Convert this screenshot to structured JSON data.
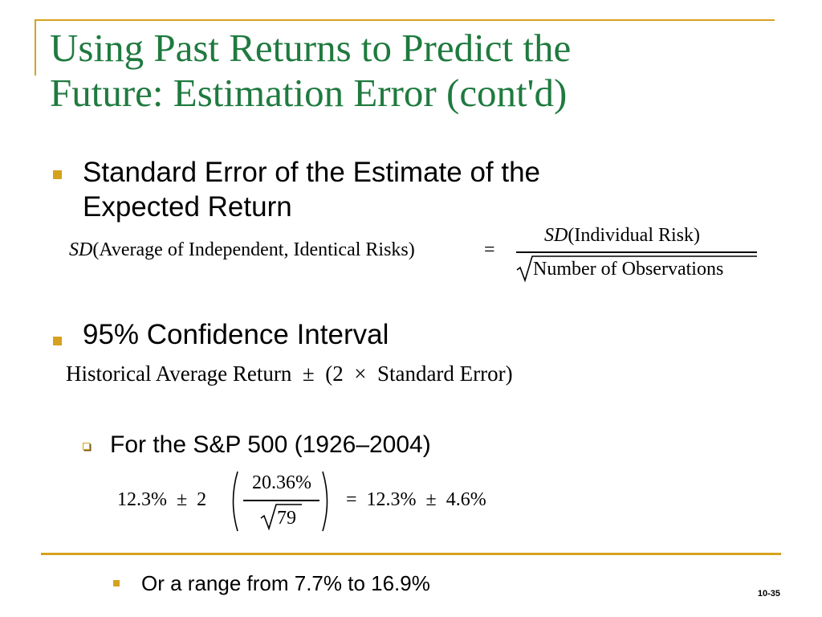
{
  "slide": {
    "title_line1": "Using Past Returns to Predict the",
    "title_line2": "Future: Estimation Error (cont'd)",
    "bullets": {
      "b1_line1": "Standard Error of the Estimate of the",
      "b1_line2": "Expected Return",
      "b2": "95% Confidence Interval",
      "b3": "For the S&P 500 (1926–2004)",
      "b4": "Or a range from 7.7% to 16.9%"
    },
    "eq1": {
      "lhs_sd": "SD",
      "lhs_rest": "(Average of Independent, Identical Risks)",
      "equals": "=",
      "num_sd": "SD",
      "num_rest": "(Individual Risk)",
      "den": "Number of Observations"
    },
    "eq2": {
      "text": "Historical Average Return  ±  (2  ×  Standard Error)"
    },
    "eq3": {
      "left": "12.3%  ±  2",
      "num": "20.36%",
      "den": "79",
      "right": "=  12.3%  ±  4.6%"
    },
    "page_number": "10-35"
  },
  "colors": {
    "accent": "#D6A21E",
    "title": "#1F7A3F"
  }
}
